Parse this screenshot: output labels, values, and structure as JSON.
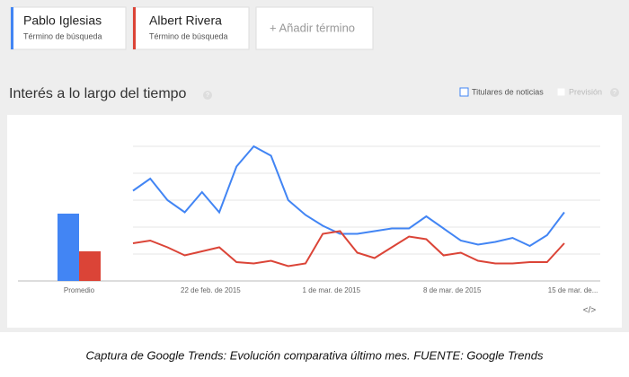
{
  "terms": {
    "subtitle": "Término de búsqueda",
    "add": "+ Añadir término"
  },
  "panel": {
    "title": "Interés a lo largo del tiempo",
    "help": "?",
    "news": "Titulares de noticias",
    "forecast": "Previsión",
    "forecast_help": "?",
    "embed": "</>"
  },
  "caption": "Captura de Google Trends: Evolución comparativa último mes. FUENTE: Google Trends",
  "chart_data": {
    "type": "line",
    "ylim": [
      0,
      100
    ],
    "grid": true,
    "average_label": "Promedio",
    "categories": [
      null,
      null,
      null,
      null,
      "22 de feb. de 2015",
      null,
      null,
      null,
      null,
      null,
      null,
      "1 de mar. de 2015",
      null,
      null,
      null,
      null,
      null,
      null,
      "8 de mar. de 2015",
      null,
      null,
      null,
      null,
      null,
      null,
      "15 de mar. de..."
    ],
    "series": [
      {
        "name": "Pablo Iglesias",
        "color": "#4285f4",
        "average": 50,
        "values": [
          67,
          76,
          60,
          51,
          66,
          51,
          85,
          100,
          93,
          60,
          49,
          41,
          35,
          35,
          37,
          39,
          39,
          48,
          39,
          30,
          27,
          29,
          32,
          26,
          34,
          51
        ]
      },
      {
        "name": "Albert Rivera",
        "color": "#db4437",
        "average": 22,
        "values": [
          28,
          30,
          25,
          19,
          22,
          25,
          14,
          13,
          15,
          11,
          13,
          35,
          37,
          21,
          17,
          25,
          33,
          31,
          19,
          21,
          15,
          13,
          13,
          14,
          14,
          28
        ]
      }
    ]
  }
}
